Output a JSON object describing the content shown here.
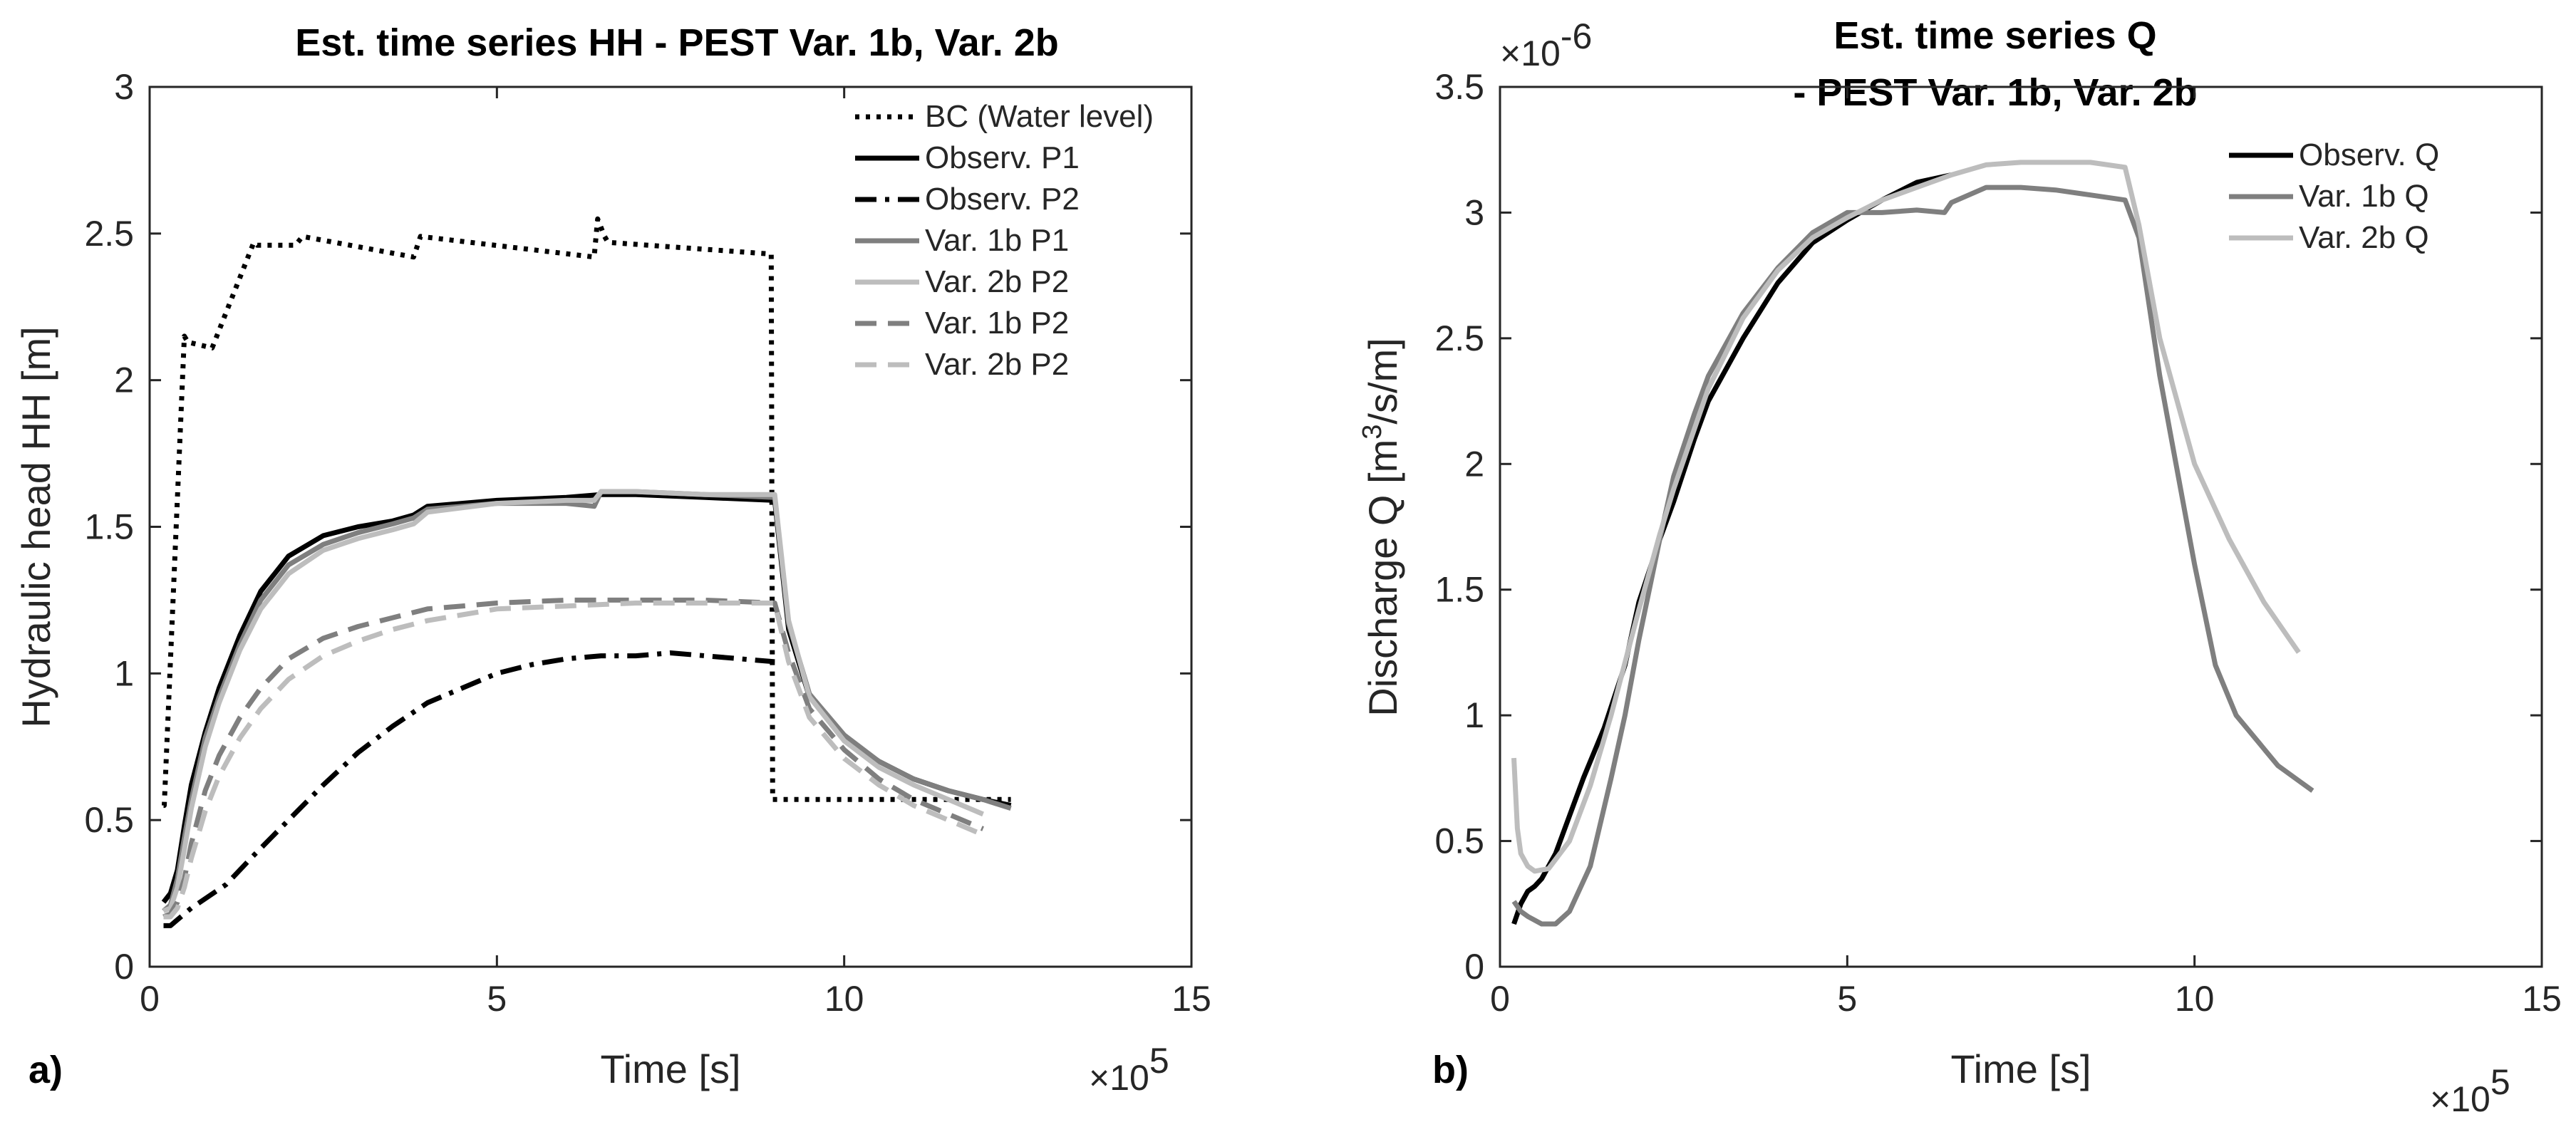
{
  "colors": {
    "black": "#000000",
    "dark_gray": "#7f7f7f",
    "light_gray": "#bdbdbd"
  },
  "chart_data": [
    {
      "type": "line",
      "panel_label": "a)",
      "title": "Est. time series HH - PEST Var. 1b, Var. 2b",
      "xlabel": "Time [s]",
      "ylabel": "Hydraulic head HH [m]",
      "x_multiplier": "×10",
      "x_multiplier_exp": "5",
      "xlim": [
        0,
        15
      ],
      "ylim": [
        0,
        3
      ],
      "xticks": [
        0,
        5,
        10,
        15
      ],
      "yticks": [
        0,
        0.5,
        1,
        1.5,
        2,
        2.5,
        3
      ],
      "xtick_labels": [
        "0",
        "5",
        "10",
        "15"
      ],
      "ytick_labels": [
        "0",
        "0.5",
        "1",
        "1.5",
        "2",
        "2.5",
        "3"
      ],
      "legend_position": "top-right",
      "series": [
        {
          "name": "BC (Water level)",
          "style": "dotted",
          "color": "#000000",
          "x": [
            0.2,
            0.21,
            0.5,
            0.55,
            0.9,
            1.05,
            1.5,
            1.55,
            2.1,
            2.2,
            3.8,
            3.9,
            6.4,
            6.45,
            6.55,
            6.6,
            8.95,
            8.97,
            12.4
          ],
          "y": [
            0.55,
            0.55,
            2.15,
            2.13,
            2.11,
            2.2,
            2.47,
            2.46,
            2.46,
            2.49,
            2.42,
            2.49,
            2.42,
            2.55,
            2.49,
            2.47,
            2.43,
            0.57,
            0.57
          ]
        },
        {
          "name": "Observ. P1",
          "style": "solid",
          "color": "#000000",
          "x": [
            0.2,
            0.3,
            0.4,
            0.5,
            0.6,
            0.8,
            1.0,
            1.3,
            1.6,
            2.0,
            2.5,
            3.0,
            3.5,
            3.8,
            4.0,
            5.0,
            6.0,
            6.5,
            7.0,
            8.0,
            9.0,
            9.2,
            9.5,
            10.0,
            10.5,
            11.0,
            11.5,
            12.0,
            12.4
          ],
          "y": [
            0.22,
            0.25,
            0.33,
            0.48,
            0.62,
            0.8,
            0.95,
            1.13,
            1.28,
            1.4,
            1.47,
            1.5,
            1.52,
            1.54,
            1.57,
            1.59,
            1.6,
            1.61,
            1.61,
            1.6,
            1.59,
            1.15,
            0.92,
            0.78,
            0.7,
            0.64,
            0.6,
            0.57,
            0.55
          ]
        },
        {
          "name": "Observ. P2",
          "style": "dashdot",
          "color": "#000000",
          "x": [
            0.2,
            0.3,
            0.4,
            0.5,
            0.6,
            1.1,
            1.5,
            2.0,
            2.5,
            3.0,
            3.5,
            4.0,
            4.5,
            5.0,
            5.5,
            6.0,
            6.5,
            7.0,
            7.5,
            8.0,
            8.5,
            9.0
          ],
          "y": [
            0.14,
            0.14,
            0.16,
            0.18,
            0.2,
            0.28,
            0.38,
            0.5,
            0.62,
            0.73,
            0.82,
            0.9,
            0.95,
            1.0,
            1.03,
            1.05,
            1.06,
            1.06,
            1.07,
            1.06,
            1.05,
            1.04
          ]
        },
        {
          "name": "Var. 1b P1",
          "style": "solid",
          "color": "#7f7f7f",
          "x": [
            0.2,
            0.3,
            0.4,
            0.5,
            0.6,
            0.8,
            1.0,
            1.3,
            1.6,
            2.0,
            2.5,
            3.0,
            3.5,
            3.8,
            4.0,
            5.0,
            6.0,
            6.4,
            6.5,
            7.0,
            8.0,
            9.0,
            9.2,
            9.5,
            10.0,
            10.5,
            11.0,
            11.5,
            12.0,
            12.4
          ],
          "y": [
            0.19,
            0.21,
            0.3,
            0.44,
            0.57,
            0.78,
            0.92,
            1.1,
            1.25,
            1.37,
            1.44,
            1.48,
            1.51,
            1.53,
            1.56,
            1.58,
            1.58,
            1.57,
            1.62,
            1.62,
            1.61,
            1.6,
            1.17,
            0.93,
            0.79,
            0.7,
            0.64,
            0.6,
            0.57,
            0.54
          ]
        },
        {
          "name": "Var. 2b P2",
          "style": "solid",
          "color": "#bdbdbd",
          "x": [
            0.2,
            0.3,
            0.4,
            0.5,
            0.6,
            0.8,
            1.0,
            1.3,
            1.6,
            2.0,
            2.5,
            3.0,
            3.5,
            3.8,
            4.0,
            5.0,
            6.0,
            6.4,
            6.5,
            7.0,
            8.0,
            9.0,
            9.2,
            9.5,
            10.0,
            10.5,
            11.0,
            11.5,
            12.0
          ],
          "y": [
            0.19,
            0.2,
            0.27,
            0.4,
            0.54,
            0.75,
            0.9,
            1.08,
            1.22,
            1.34,
            1.42,
            1.46,
            1.49,
            1.51,
            1.55,
            1.58,
            1.59,
            1.59,
            1.62,
            1.62,
            1.61,
            1.61,
            1.18,
            0.92,
            0.77,
            0.68,
            0.62,
            0.57,
            0.52
          ]
        },
        {
          "name": "Var. 1b P2",
          "style": "dashed",
          "color": "#7f7f7f",
          "x": [
            0.2,
            0.3,
            0.4,
            0.5,
            0.6,
            0.8,
            1.0,
            1.3,
            1.6,
            2.0,
            2.5,
            3.0,
            3.5,
            4.0,
            4.5,
            5.0,
            6.0,
            7.0,
            8.0,
            9.0,
            9.2,
            9.5,
            10.0,
            10.5,
            11.0,
            11.5,
            12.0
          ],
          "y": [
            0.17,
            0.18,
            0.22,
            0.3,
            0.42,
            0.6,
            0.72,
            0.85,
            0.95,
            1.05,
            1.12,
            1.16,
            1.19,
            1.22,
            1.23,
            1.24,
            1.25,
            1.25,
            1.25,
            1.24,
            1.07,
            0.88,
            0.74,
            0.64,
            0.57,
            0.52,
            0.47
          ]
        },
        {
          "name": "Var. 2b P2",
          "style": "dashed",
          "color": "#bdbdbd",
          "x": [
            0.2,
            0.3,
            0.4,
            0.5,
            0.6,
            0.8,
            1.0,
            1.3,
            1.6,
            2.0,
            2.5,
            3.0,
            3.5,
            4.0,
            4.5,
            5.0,
            6.0,
            7.0,
            8.0,
            9.0,
            9.2,
            9.5,
            10.0,
            10.5,
            11.0,
            11.5,
            12.0
          ],
          "y": [
            0.17,
            0.17,
            0.2,
            0.27,
            0.37,
            0.53,
            0.65,
            0.78,
            0.88,
            0.98,
            1.06,
            1.11,
            1.15,
            1.18,
            1.2,
            1.22,
            1.23,
            1.24,
            1.24,
            1.24,
            1.04,
            0.85,
            0.71,
            0.62,
            0.55,
            0.5,
            0.45
          ]
        }
      ]
    },
    {
      "type": "line",
      "panel_label": "b)",
      "title": "Est. time series Q",
      "subtitle": "- PEST Var. 1b, Var. 2b",
      "xlabel": "Time [s]",
      "ylabel": "Discharge Q [m³/s/m]",
      "ylabel_parts": [
        "Discharge Q [m",
        "3",
        "/s/m]"
      ],
      "x_multiplier": "×10",
      "x_multiplier_exp": "5",
      "y_multiplier": "×10",
      "y_multiplier_exp": "-6",
      "xlim": [
        0,
        15
      ],
      "ylim": [
        0,
        3.5
      ],
      "xticks": [
        0,
        5,
        10,
        15
      ],
      "yticks": [
        0,
        0.5,
        1,
        1.5,
        2,
        2.5,
        3,
        3.5
      ],
      "xtick_labels": [
        "0",
        "5",
        "10",
        "15"
      ],
      "ytick_labels": [
        "0",
        "0.5",
        "1",
        "1.5",
        "2",
        "2.5",
        "3",
        "3.5"
      ],
      "legend_position": "top-right",
      "series": [
        {
          "name": "Observ. Q",
          "style": "solid",
          "color": "#000000",
          "x": [
            0.2,
            0.3,
            0.4,
            0.5,
            0.6,
            0.8,
            1.0,
            1.2,
            1.5,
            1.8,
            2.0,
            2.3,
            2.5,
            2.8,
            3.0,
            3.5,
            4.0,
            4.5,
            5.0,
            5.5,
            6.0,
            6.5
          ],
          "y": [
            0.17,
            0.25,
            0.3,
            0.32,
            0.35,
            0.45,
            0.6,
            0.75,
            0.95,
            1.2,
            1.45,
            1.7,
            1.85,
            2.1,
            2.25,
            2.5,
            2.72,
            2.88,
            2.97,
            3.05,
            3.12,
            3.15
          ]
        },
        {
          "name": "Var. 1b Q",
          "style": "solid",
          "color": "#7f7f7f",
          "x": [
            0.2,
            0.3,
            0.4,
            0.6,
            0.8,
            1.0,
            1.3,
            1.6,
            1.8,
            2.0,
            2.3,
            2.5,
            2.8,
            3.0,
            3.5,
            4.0,
            4.5,
            5.0,
            5.5,
            6.0,
            6.4,
            6.5,
            7.0,
            7.5,
            8.0,
            8.5,
            9.0,
            9.2,
            9.5,
            10.0,
            10.3,
            10.6,
            10.9,
            11.2,
            11.5,
            11.7
          ],
          "y": [
            0.26,
            0.22,
            0.2,
            0.17,
            0.17,
            0.22,
            0.4,
            0.75,
            1.0,
            1.3,
            1.7,
            1.95,
            2.2,
            2.35,
            2.6,
            2.78,
            2.92,
            3.0,
            3.0,
            3.01,
            3.0,
            3.04,
            3.1,
            3.1,
            3.09,
            3.07,
            3.05,
            2.9,
            2.35,
            1.6,
            1.2,
            1.0,
            0.9,
            0.8,
            0.74,
            0.7
          ]
        },
        {
          "name": "Var. 2b Q",
          "style": "solid",
          "color": "#bdbdbd",
          "x": [
            0.2,
            0.25,
            0.3,
            0.4,
            0.5,
            0.7,
            1.0,
            1.3,
            1.6,
            2.0,
            2.3,
            2.5,
            3.0,
            3.5,
            4.0,
            4.5,
            5.0,
            5.5,
            6.0,
            6.5,
            7.0,
            7.5,
            8.0,
            8.5,
            9.0,
            9.2,
            9.5,
            10.0,
            10.5,
            11.0,
            11.5
          ],
          "y": [
            0.83,
            0.55,
            0.45,
            0.4,
            0.38,
            0.39,
            0.5,
            0.72,
            1.0,
            1.42,
            1.72,
            1.9,
            2.3,
            2.58,
            2.77,
            2.9,
            2.98,
            3.05,
            3.1,
            3.15,
            3.19,
            3.2,
            3.2,
            3.2,
            3.18,
            2.95,
            2.5,
            2.0,
            1.7,
            1.45,
            1.25
          ]
        }
      ]
    }
  ]
}
